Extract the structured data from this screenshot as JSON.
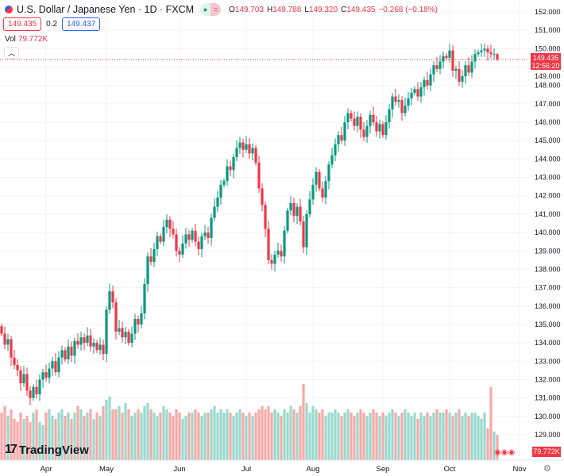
{
  "header": {
    "title": "U.S. Dollar / Japanese Yen · 1D · FXCM",
    "o_label": "O",
    "o": "149.703",
    "h_label": "H",
    "h": "149.788",
    "l_label": "L",
    "l": "149.320",
    "c_label": "C",
    "c": "149.435",
    "change": "−0.268 (−0.18%)",
    "market_status_icon": "equals"
  },
  "trade": {
    "sell": "149.435",
    "spread": "0.2",
    "buy": "149.437"
  },
  "volume_legend": {
    "label": "Vol",
    "value": "79.772K"
  },
  "brand": "TradingView",
  "price_tag": {
    "price": "149.435",
    "countdown": "12:56:20"
  },
  "volume_tag": "79.772K",
  "colors": {
    "up": "#089981",
    "down": "#f23645",
    "vol_up": "#9ad9cd",
    "vol_down": "#f7a9a7"
  },
  "chart_data": {
    "type": "candlestick",
    "title": "U.S. Dollar / Japanese Yen · 1D · FXCM",
    "ylim": [
      129,
      152
    ],
    "y_ticks": [
      "152.000",
      "151.000",
      "150.000",
      "149.000",
      "148.000",
      "147.000",
      "146.000",
      "145.000",
      "144.000",
      "143.000",
      "142.000",
      "141.000",
      "140.000",
      "139.000",
      "138.000",
      "137.000",
      "136.000",
      "135.000",
      "134.000",
      "133.000",
      "132.000",
      "131.000",
      "130.000",
      "129.000"
    ],
    "x_ticks": [
      {
        "label": "Apr",
        "index": 14
      },
      {
        "label": "May",
        "index": 33
      },
      {
        "label": "Jun",
        "index": 56
      },
      {
        "label": "Jul",
        "index": 77
      },
      {
        "label": "Aug",
        "index": 98
      },
      {
        "label": "Sep",
        "index": 120
      },
      {
        "label": "Oct",
        "index": 141
      },
      {
        "label": "Nov",
        "index": 163
      }
    ],
    "first_open": 134.9,
    "closes": [
      134.5,
      133.9,
      134.2,
      133.2,
      132.8,
      132.5,
      131.8,
      132.3,
      131.4,
      131.0,
      131.6,
      131.2,
      132.0,
      132.4,
      132.1,
      132.6,
      133.0,
      132.4,
      133.2,
      133.6,
      133.1,
      133.8,
      133.3,
      134.1,
      133.9,
      134.3,
      134.0,
      134.4,
      133.8,
      134.0,
      133.6,
      133.9,
      133.4,
      135.8,
      136.8,
      136.2,
      134.6,
      134.8,
      134.3,
      134.6,
      134.0,
      134.5,
      135.3,
      135.0,
      135.6,
      137.2,
      138.7,
      138.4,
      139.1,
      139.8,
      139.5,
      140.3,
      140.7,
      140.2,
      139.9,
      139.0,
      138.8,
      139.4,
      139.9,
      139.6,
      140.1,
      139.5,
      139.1,
      139.8,
      140.0,
      139.7,
      140.8,
      141.4,
      141.9,
      142.6,
      142.8,
      143.6,
      143.4,
      144.1,
      144.6,
      144.9,
      144.5,
      144.8,
      144.3,
      144.6,
      143.8,
      142.4,
      141.5,
      140.2,
      138.5,
      138.3,
      138.8,
      139.0,
      138.7,
      140.1,
      141.2,
      141.6,
      140.9,
      141.4,
      140.6,
      139.2,
      141.0,
      141.8,
      142.6,
      143.3,
      142.4,
      141.9,
      142.8,
      143.7,
      144.2,
      144.8,
      145.3,
      145.0,
      146.0,
      146.5,
      146.2,
      145.8,
      146.3,
      145.6,
      145.2,
      145.8,
      146.4,
      146.0,
      145.5,
      145.9,
      145.3,
      146.0,
      146.7,
      147.4,
      147.1,
      147.2,
      146.5,
      146.9,
      147.3,
      147.6,
      147.8,
      147.4,
      147.9,
      148.3,
      148.0,
      148.6,
      149.1,
      148.9,
      149.3,
      149.6,
      149.5,
      149.9,
      148.8,
      148.9,
      148.2,
      148.5,
      149.1,
      148.7,
      149.3,
      149.7,
      149.8,
      149.9,
      150.0,
      149.8,
      149.7,
      149.703,
      149.435
    ],
    "volumes_k": [
      150,
      170,
      140,
      160,
      130,
      120,
      150,
      130,
      140,
      120,
      150,
      160,
      120,
      110,
      150,
      160,
      140,
      130,
      150,
      160,
      140,
      150,
      130,
      150,
      170,
      160,
      140,
      150,
      160,
      130,
      150,
      140,
      170,
      190,
      200,
      160,
      160,
      170,
      150,
      180,
      160,
      140,
      150,
      160,
      150,
      170,
      180,
      160,
      150,
      140,
      150,
      170,
      160,
      150,
      140,
      160,
      150,
      130,
      140,
      150,
      150,
      160,
      150,
      140,
      150,
      150,
      160,
      170,
      150,
      160,
      150,
      160,
      150,
      140,
      150,
      160,
      150,
      140,
      150,
      140,
      150,
      160,
      170,
      160,
      170,
      150,
      160,
      150,
      140,
      160,
      150,
      170,
      160,
      150,
      170,
      240,
      180,
      150,
      170,
      160,
      150,
      160,
      140,
      150,
      150,
      160,
      150,
      140,
      150,
      160,
      150,
      140,
      150,
      160,
      150,
      140,
      150,
      160,
      150,
      140,
      150,
      140,
      150,
      160,
      150,
      140,
      150,
      160,
      150,
      140,
      150,
      130,
      150,
      140,
      150,
      140,
      150,
      160,
      150,
      150,
      160,
      150,
      140,
      150,
      160,
      140,
      150,
      140,
      150,
      150,
      140,
      130,
      150,
      100,
      230,
      90,
      79.772
    ]
  }
}
